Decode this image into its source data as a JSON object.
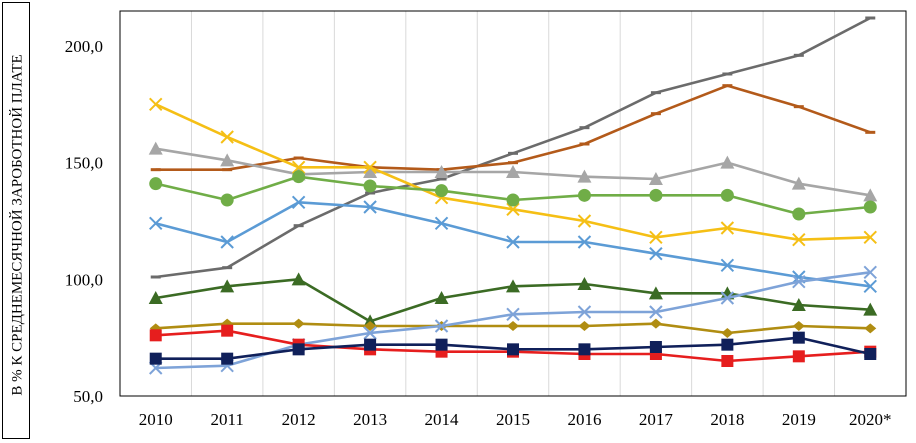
{
  "chart_data": {
    "type": "line",
    "ylabel": "В % К СРЕДНЕМЕСЯЧНОЙ ЗАРОБОТНОЙ ПЛАТЕ",
    "xlabel": "",
    "ylim": [
      50,
      215
    ],
    "y_ticks": [
      "50,0",
      "100,0",
      "150,0",
      "200,0"
    ],
    "categories": [
      "2010",
      "2011",
      "2012",
      "2013",
      "2014",
      "2015",
      "2016",
      "2017",
      "2018",
      "2019",
      "2020*"
    ],
    "grid": "vertical",
    "legend": "none",
    "series": [
      {
        "color": "#6b6b6b",
        "marker": "dash",
        "values": [
          101,
          105,
          123,
          137,
          143,
          154,
          165,
          180,
          188,
          196,
          212
        ]
      },
      {
        "color": "#b35a1a",
        "marker": "dash",
        "values": [
          147,
          147,
          152,
          148,
          147,
          150,
          158,
          171,
          183,
          174,
          163
        ]
      },
      {
        "color": "#a6a6a6",
        "marker": "triangle",
        "values": [
          156,
          151,
          145,
          146,
          146,
          146,
          144,
          143,
          150,
          141,
          136
        ]
      },
      {
        "color": "#f5bf15",
        "marker": "x",
        "values": [
          175,
          161,
          148,
          148,
          135,
          130,
          125,
          118,
          122,
          117,
          118
        ]
      },
      {
        "color": "#70ad47",
        "marker": "circle",
        "values": [
          141,
          134,
          144,
          140,
          138,
          134,
          136,
          136,
          136,
          128,
          131
        ]
      },
      {
        "color": "#5b9bd5",
        "marker": "x",
        "values": [
          124,
          116,
          133,
          131,
          124,
          116,
          116,
          111,
          106,
          101,
          97
        ]
      },
      {
        "color": "#3b6b24",
        "marker": "triangle",
        "values": [
          92,
          97,
          100,
          82,
          92,
          97,
          98,
          94,
          94,
          89,
          87
        ]
      },
      {
        "color": "#b08d12",
        "marker": "diamond",
        "values": [
          79,
          81,
          81,
          80,
          80,
          80,
          80,
          81,
          77,
          80,
          79
        ]
      },
      {
        "color": "#7ea3d8",
        "marker": "x",
        "values": [
          62,
          63,
          72,
          77,
          80,
          85,
          86,
          86,
          92,
          99,
          103
        ]
      },
      {
        "color": "#e61e1e",
        "marker": "square",
        "values": [
          76,
          78,
          72,
          70,
          69,
          69,
          68,
          68,
          65,
          67,
          69
        ]
      },
      {
        "color": "#10205a",
        "marker": "square",
        "values": [
          66,
          66,
          70,
          72,
          72,
          70,
          70,
          71,
          72,
          75,
          68
        ]
      }
    ]
  }
}
